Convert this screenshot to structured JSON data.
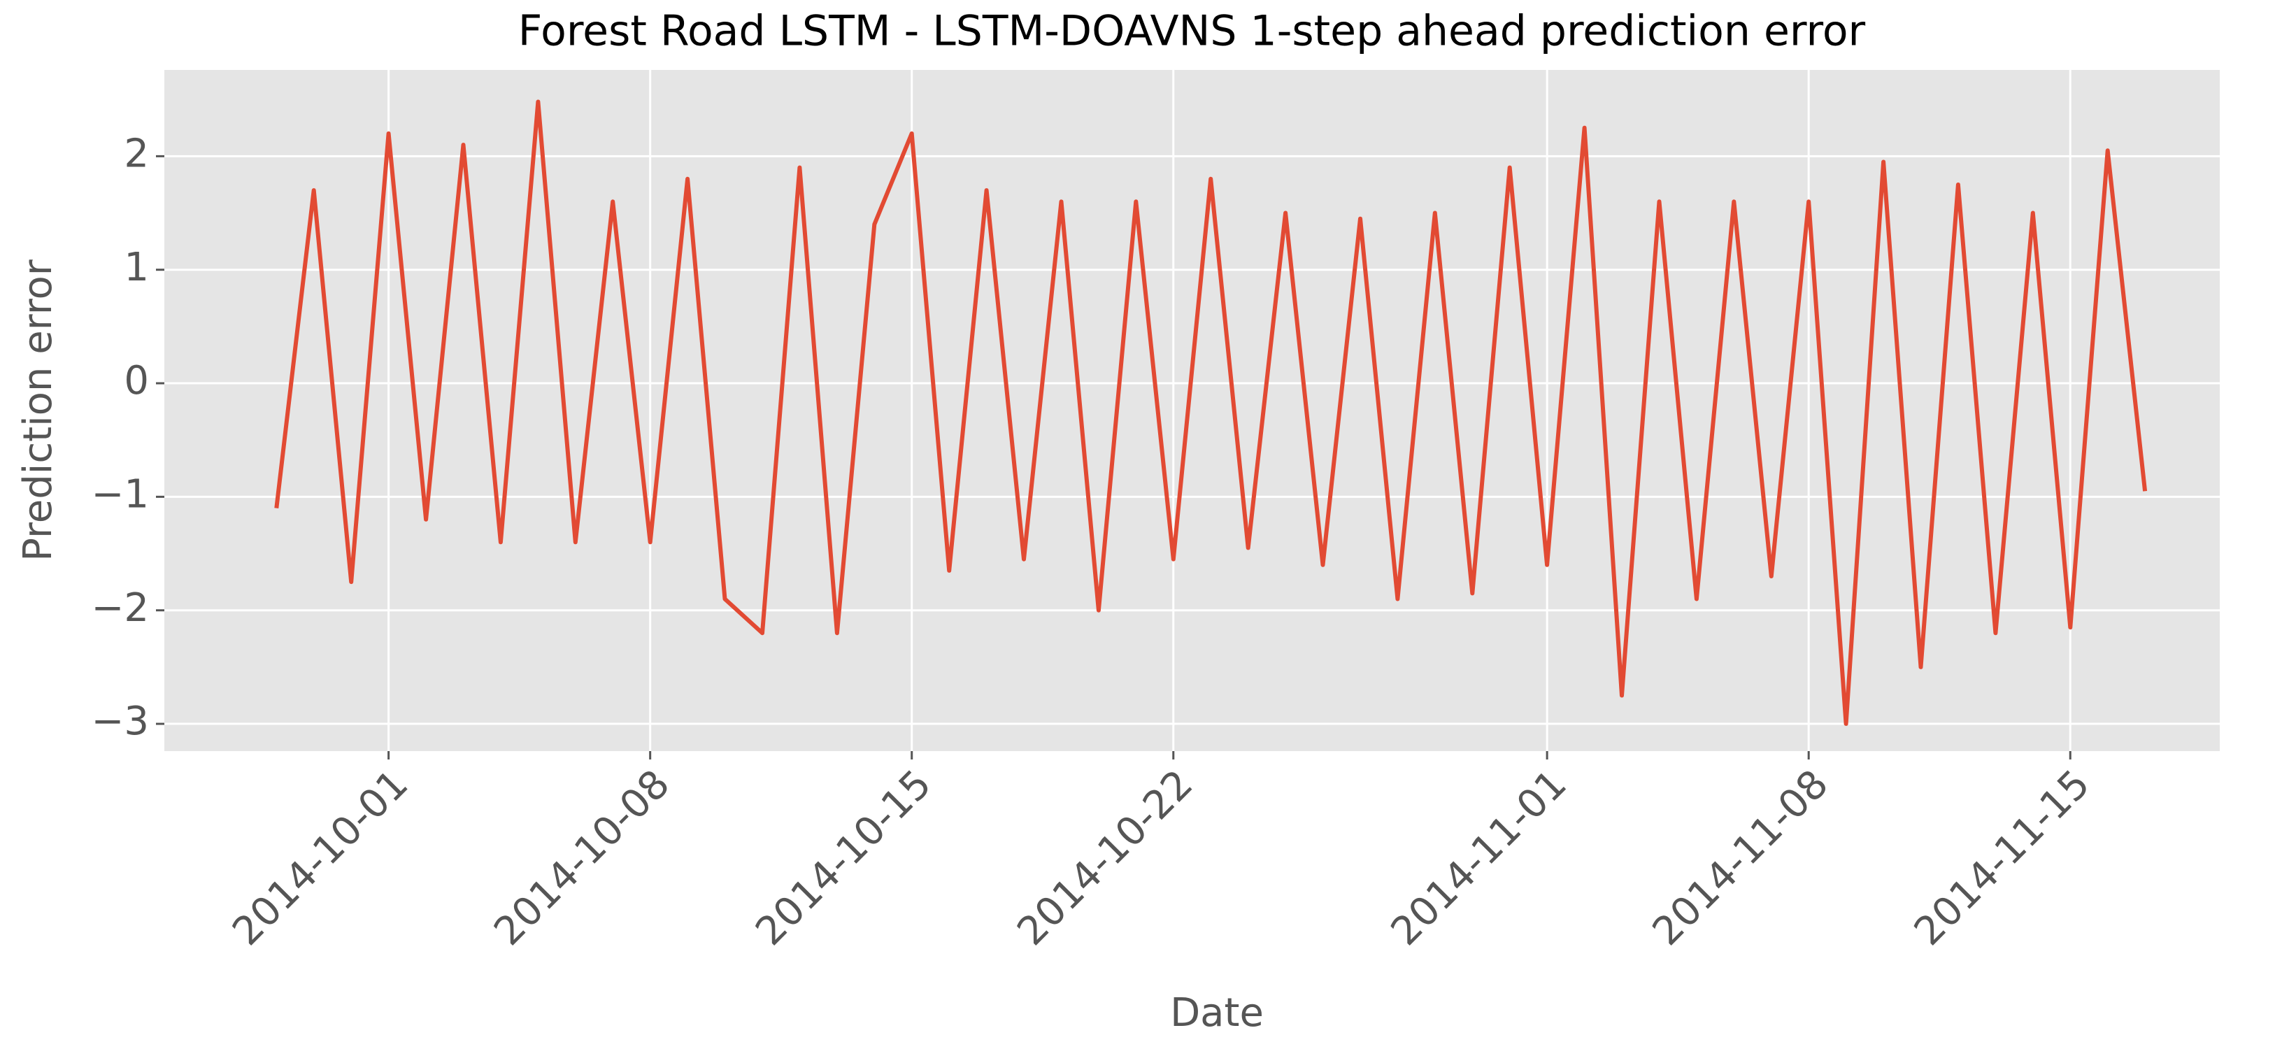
{
  "chart_data": {
    "type": "line",
    "title": "Forest Road LSTM - LSTM-DOAVNS 1-step ahead prediction error",
    "x_label": "Date",
    "y_label": "Prediction error",
    "x": [
      "2014-09-28",
      "2014-09-29",
      "2014-09-30",
      "2014-10-01",
      "2014-10-02",
      "2014-10-03",
      "2014-10-04",
      "2014-10-05",
      "2014-10-06",
      "2014-10-07",
      "2014-10-08",
      "2014-10-09",
      "2014-10-10",
      "2014-10-11",
      "2014-10-12",
      "2014-10-13",
      "2014-10-14",
      "2014-10-15",
      "2014-10-16",
      "2014-10-17",
      "2014-10-18",
      "2014-10-19",
      "2014-10-20",
      "2014-10-21",
      "2014-10-22",
      "2014-10-23",
      "2014-10-24",
      "2014-10-25",
      "2014-10-26",
      "2014-10-27",
      "2014-10-28",
      "2014-10-29",
      "2014-10-30",
      "2014-10-31",
      "2014-11-01",
      "2014-11-02",
      "2014-11-03",
      "2014-11-04",
      "2014-11-05",
      "2014-11-06",
      "2014-11-07",
      "2014-11-08",
      "2014-11-09",
      "2014-11-10",
      "2014-11-11",
      "2014-11-12",
      "2014-11-13",
      "2014-11-14",
      "2014-11-15",
      "2014-11-16",
      "2014-11-17"
    ],
    "series": [
      {
        "color": "#e24a33",
        "values": [
          -1.1,
          1.7,
          -1.75,
          2.2,
          -1.2,
          2.1,
          -1.4,
          2.48,
          -1.4,
          1.6,
          -1.4,
          1.8,
          -1.9,
          -2.2,
          1.9,
          -2.2,
          1.4,
          2.2,
          -1.65,
          1.7,
          -1.55,
          1.6,
          -2.0,
          1.6,
          -1.55,
          1.8,
          -1.45,
          1.5,
          -1.6,
          1.45,
          -1.9,
          1.5,
          -1.85,
          1.9,
          -1.6,
          2.25,
          -2.75,
          1.6,
          -1.9,
          1.6,
          -1.7,
          1.6,
          -3.0,
          1.95,
          -2.5,
          1.75,
          -2.2,
          1.5,
          -2.15,
          2.05,
          -0.95
        ]
      }
    ],
    "xlim": [
      "2014-09-25",
      "2014-11-19"
    ],
    "xticks": [
      "2014-10-01",
      "2014-10-08",
      "2014-10-15",
      "2014-10-22",
      "2014-11-01",
      "2014-11-08",
      "2014-11-15"
    ],
    "ylim": [
      -3.24,
      2.76
    ],
    "yticks": [
      {
        "value": -3,
        "label": "−3"
      },
      {
        "value": -2,
        "label": "−2"
      },
      {
        "value": -1,
        "label": "−1"
      },
      0,
      1,
      2
    ],
    "grid": true
  }
}
